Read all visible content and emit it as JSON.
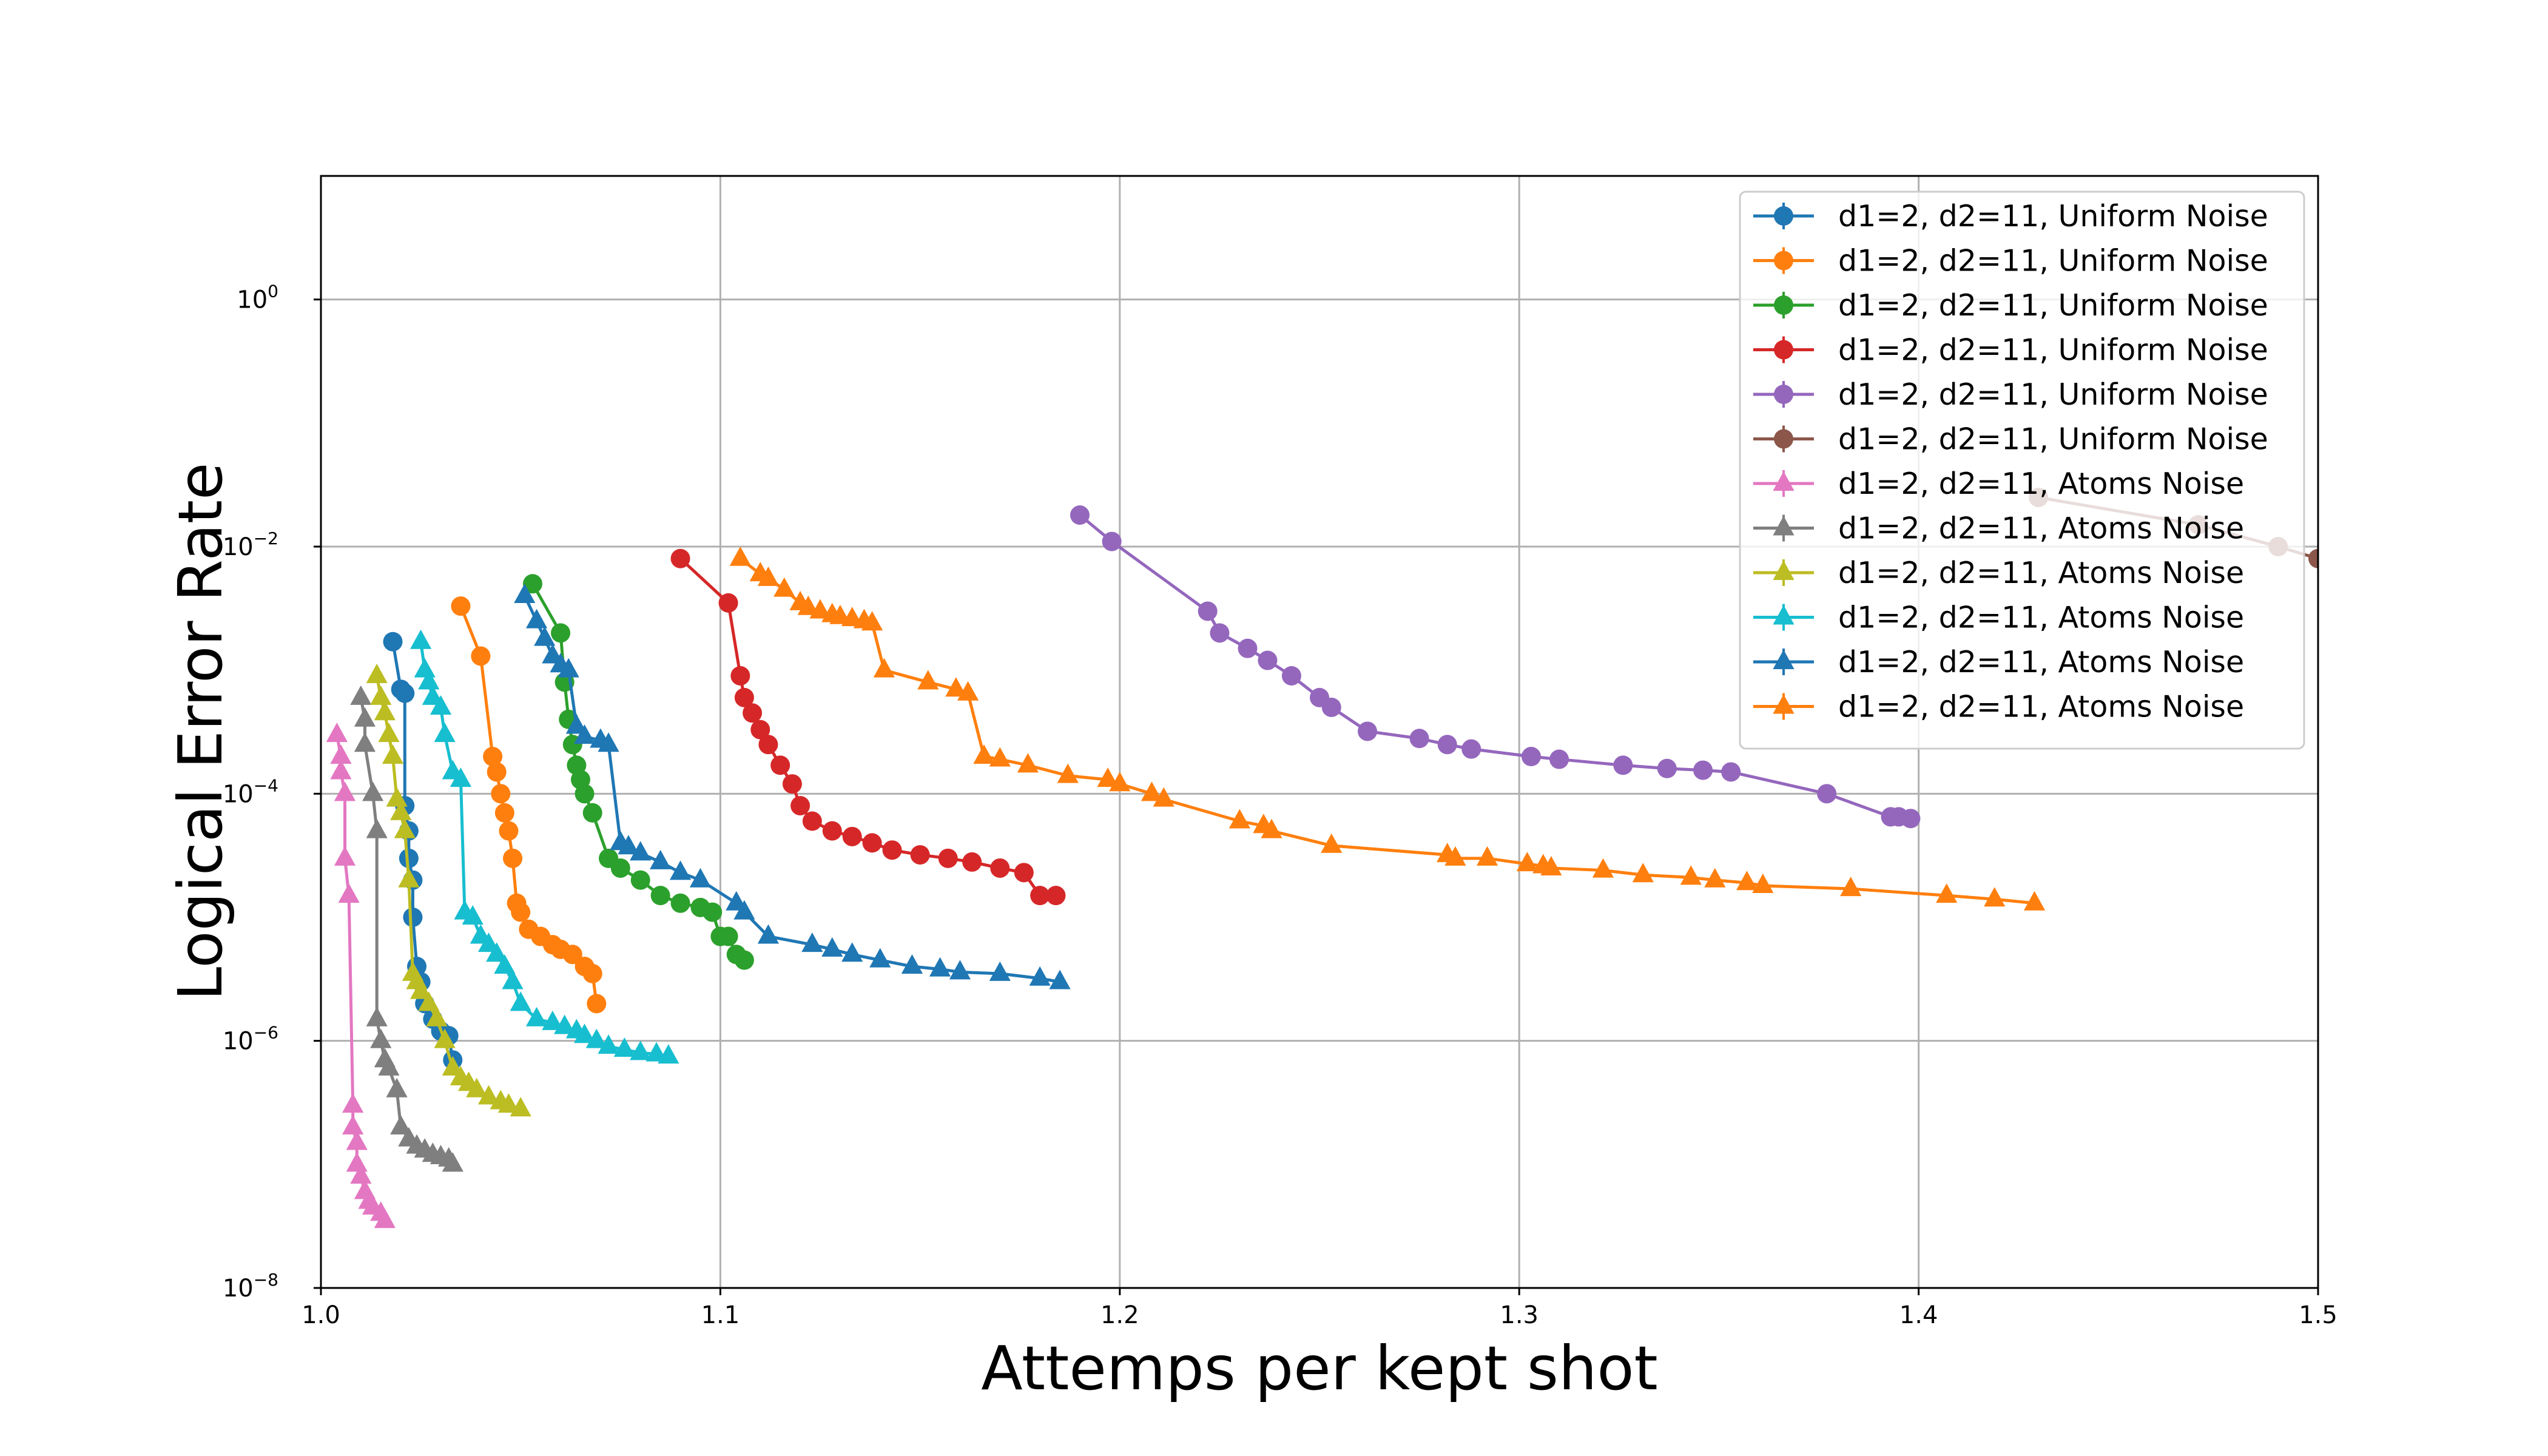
{
  "chart_data": {
    "type": "line",
    "title": "",
    "xlabel": "Attemps per kept shot",
    "ylabel": "Logical Error Rate",
    "xlim": [
      1.0,
      1.5
    ],
    "ylim_log10": [
      -8,
      1
    ],
    "y_scale": "log",
    "grid": true,
    "legend_position": "top-right",
    "x_ticks": [
      {
        "value": 1.0,
        "label": "1.0"
      },
      {
        "value": 1.1,
        "label": "1.1"
      },
      {
        "value": 1.2,
        "label": "1.2"
      },
      {
        "value": 1.3,
        "label": "1.3"
      },
      {
        "value": 1.4,
        "label": "1.4"
      },
      {
        "value": 1.5,
        "label": "1.5"
      }
    ],
    "y_ticks": [
      {
        "exp": 0,
        "base": "10",
        "sup": "0"
      },
      {
        "exp": -2,
        "base": "10",
        "sup": "−2"
      },
      {
        "exp": -4,
        "base": "10",
        "sup": "−4"
      },
      {
        "exp": -6,
        "base": "10",
        "sup": "−6"
      },
      {
        "exp": -8,
        "base": "10",
        "sup": "−8"
      }
    ],
    "series": [
      {
        "name": "d1=2, d2=11,  Uniform Noise",
        "color": "#1f77b4",
        "marker": "circle",
        "x": [
          1.018,
          1.02,
          1.021,
          1.021,
          1.022,
          1.022,
          1.023,
          1.023,
          1.024,
          1.025,
          1.026,
          1.028,
          1.03,
          1.032,
          1.033
        ],
        "y": [
          0.0017,
          0.0007,
          0.00065,
          8e-05,
          5e-05,
          3e-05,
          2e-05,
          1e-05,
          4e-06,
          3e-06,
          2e-06,
          1.5e-06,
          1.2e-06,
          1.1e-06,
          7e-07
        ]
      },
      {
        "name": "d1=2, d2=11,  Uniform Noise",
        "color": "#ff7f0e",
        "marker": "circle",
        "x": [
          1.035,
          1.04,
          1.043,
          1.044,
          1.045,
          1.046,
          1.047,
          1.048,
          1.049,
          1.05,
          1.052,
          1.055,
          1.058,
          1.06,
          1.063,
          1.066,
          1.068,
          1.069
        ],
        "y": [
          0.0033,
          0.0013,
          0.0002,
          0.00015,
          0.0001,
          7e-05,
          5e-05,
          3e-05,
          1.3e-05,
          1.1e-05,
          8e-06,
          7e-06,
          6e-06,
          5.5e-06,
          5e-06,
          4e-06,
          3.5e-06,
          2e-06
        ]
      },
      {
        "name": "d1=2, d2=11,  Uniform Noise",
        "color": "#2ca02c",
        "marker": "circle",
        "x": [
          1.053,
          1.06,
          1.061,
          1.062,
          1.063,
          1.064,
          1.065,
          1.066,
          1.068,
          1.072,
          1.075,
          1.08,
          1.085,
          1.09,
          1.095,
          1.098,
          1.1,
          1.102,
          1.104,
          1.106
        ],
        "y": [
          0.005,
          0.002,
          0.0008,
          0.0004,
          0.00025,
          0.00017,
          0.00013,
          0.0001,
          7e-05,
          3e-05,
          2.5e-05,
          2e-05,
          1.5e-05,
          1.3e-05,
          1.2e-05,
          1.1e-05,
          7e-06,
          7e-06,
          5e-06,
          4.5e-06
        ]
      },
      {
        "name": "d1=2, d2=11,  Uniform Noise",
        "color": "#d62728",
        "marker": "circle",
        "x": [
          1.09,
          1.102,
          1.105,
          1.106,
          1.108,
          1.11,
          1.112,
          1.115,
          1.118,
          1.12,
          1.123,
          1.128,
          1.133,
          1.138,
          1.143,
          1.15,
          1.157,
          1.163,
          1.17,
          1.176,
          1.18,
          1.184
        ],
        "y": [
          0.008,
          0.0035,
          0.0009,
          0.0006,
          0.00045,
          0.00033,
          0.00025,
          0.00017,
          0.00012,
          8e-05,
          6e-05,
          5e-05,
          4.5e-05,
          4e-05,
          3.5e-05,
          3.2e-05,
          3e-05,
          2.8e-05,
          2.5e-05,
          2.3e-05,
          1.5e-05,
          1.5e-05
        ]
      },
      {
        "name": "d1=2, d2=11,  Uniform Noise",
        "color": "#9467bd",
        "marker": "circle",
        "x": [
          1.19,
          1.198,
          1.222,
          1.225,
          1.232,
          1.237,
          1.243,
          1.25,
          1.253,
          1.262,
          1.275,
          1.282,
          1.288,
          1.303,
          1.31,
          1.326,
          1.337,
          1.346,
          1.353,
          1.377,
          1.393,
          1.395,
          1.398
        ],
        "y": [
          0.018,
          0.011,
          0.003,
          0.002,
          0.0015,
          0.0012,
          0.0009,
          0.0006,
          0.0005,
          0.00032,
          0.00028,
          0.00025,
          0.00023,
          0.0002,
          0.00019,
          0.00017,
          0.00016,
          0.000155,
          0.00015,
          0.0001,
          6.5e-05,
          6.5e-05,
          6.3e-05
        ]
      },
      {
        "name": "d1=2, d2=11,  Uniform Noise",
        "color": "#8c564b",
        "marker": "circle",
        "x": [
          1.43,
          1.47,
          1.49,
          1.5
        ],
        "y": [
          0.025,
          0.015,
          0.01,
          0.008
        ]
      },
      {
        "name": "d1=2, d2=11,  Atoms Noise",
        "color": "#e377c2",
        "marker": "triangle",
        "x": [
          1.004,
          1.005,
          1.005,
          1.006,
          1.006,
          1.007,
          1.008,
          1.008,
          1.009,
          1.009,
          1.01,
          1.011,
          1.012,
          1.013,
          1.015,
          1.016
        ],
        "y": [
          0.0003,
          0.0002,
          0.00015,
          0.0001,
          3e-05,
          1.5e-05,
          3e-07,
          2e-07,
          1.5e-07,
          1e-07,
          8e-08,
          6e-08,
          5e-08,
          4.5e-08,
          4e-08,
          3.5e-08
        ]
      },
      {
        "name": "d1=2, d2=11,  Atoms Noise",
        "color": "#7f7f7f",
        "marker": "triangle",
        "x": [
          1.01,
          1.011,
          1.011,
          1.013,
          1.014,
          1.014,
          1.015,
          1.016,
          1.017,
          1.019,
          1.02,
          1.022,
          1.024,
          1.026,
          1.028,
          1.03,
          1.032,
          1.033
        ],
        "y": [
          0.0006,
          0.0004,
          0.00025,
          0.0001,
          5e-05,
          1.5e-06,
          1e-06,
          7e-07,
          6e-07,
          4e-07,
          2e-07,
          1.6e-07,
          1.4e-07,
          1.3e-07,
          1.2e-07,
          1.15e-07,
          1.1e-07,
          1e-07
        ]
      },
      {
        "name": "d1=2, d2=11,  Atoms Noise",
        "color": "#bcbd22",
        "marker": "triangle",
        "x": [
          1.014,
          1.015,
          1.016,
          1.017,
          1.018,
          1.019,
          1.02,
          1.021,
          1.022,
          1.023,
          1.024,
          1.025,
          1.027,
          1.029,
          1.031,
          1.033,
          1.035,
          1.037,
          1.039,
          1.042,
          1.045,
          1.047,
          1.05
        ],
        "y": [
          0.0009,
          0.0006,
          0.00045,
          0.0003,
          0.0002,
          9e-05,
          7e-05,
          5e-05,
          2e-05,
          3.5e-06,
          3e-06,
          2.5e-06,
          2e-06,
          1.5e-06,
          1e-06,
          6e-07,
          5e-07,
          4.5e-07,
          4e-07,
          3.5e-07,
          3.2e-07,
          3e-07,
          2.8e-07
        ]
      },
      {
        "name": "d1=2, d2=11,  Atoms Noise",
        "color": "#17becf",
        "marker": "triangle",
        "x": [
          1.025,
          1.026,
          1.027,
          1.028,
          1.03,
          1.031,
          1.033,
          1.035,
          1.036,
          1.038,
          1.04,
          1.042,
          1.044,
          1.046,
          1.048,
          1.05,
          1.054,
          1.058,
          1.061,
          1.064,
          1.066,
          1.069,
          1.072,
          1.076,
          1.08,
          1.084,
          1.087
        ],
        "y": [
          0.0017,
          0.001,
          0.0008,
          0.0006,
          0.0005,
          0.0003,
          0.00015,
          0.00013,
          1.1e-05,
          1e-05,
          7e-06,
          6e-06,
          5e-06,
          4e-06,
          3e-06,
          2e-06,
          1.5e-06,
          1.4e-06,
          1.3e-06,
          1.2e-06,
          1.1e-06,
          1e-06,
          9e-07,
          8.5e-07,
          8e-07,
          7.8e-07,
          7.5e-07
        ]
      },
      {
        "name": "d1=2, d2=11,  Atoms Noise",
        "color": "#1f77b4",
        "marker": "triangle",
        "x": [
          1.051,
          1.054,
          1.056,
          1.058,
          1.06,
          1.062,
          1.064,
          1.066,
          1.07,
          1.072,
          1.075,
          1.077,
          1.08,
          1.085,
          1.09,
          1.095,
          1.104,
          1.106,
          1.112,
          1.123,
          1.128,
          1.133,
          1.14,
          1.148,
          1.155,
          1.16,
          1.17,
          1.18,
          1.185
        ],
        "y": [
          0.004,
          0.0025,
          0.0018,
          0.0013,
          0.0011,
          0.001,
          0.00035,
          0.00029,
          0.00027,
          0.00025,
          4e-05,
          3.7e-05,
          3.3e-05,
          2.8e-05,
          2.3e-05,
          2e-05,
          1.3e-05,
          1.1e-05,
          7e-06,
          6e-06,
          5.5e-06,
          5e-06,
          4.5e-06,
          4e-06,
          3.8e-06,
          3.6e-06,
          3.5e-06,
          3.2e-06,
          3e-06
        ]
      },
      {
        "name": "d1=2, d2=11,  Atoms Noise",
        "color": "#ff7f0e",
        "marker": "triangle",
        "x": [
          1.105,
          1.11,
          1.112,
          1.116,
          1.12,
          1.122,
          1.125,
          1.128,
          1.13,
          1.133,
          1.136,
          1.138,
          1.141,
          1.152,
          1.159,
          1.162,
          1.166,
          1.17,
          1.177,
          1.187,
          1.197,
          1.2,
          1.208,
          1.211,
          1.23,
          1.236,
          1.238,
          1.253,
          1.282,
          1.284,
          1.292,
          1.302,
          1.306,
          1.308,
          1.321,
          1.331,
          1.343,
          1.349,
          1.357,
          1.361,
          1.383,
          1.407,
          1.419,
          1.429
        ],
        "y": [
          0.008,
          0.006,
          0.0055,
          0.0045,
          0.0035,
          0.0032,
          0.003,
          0.0028,
          0.0027,
          0.0026,
          0.0025,
          0.0024,
          0.001,
          0.0008,
          0.0007,
          0.00065,
          0.0002,
          0.00019,
          0.00017,
          0.00014,
          0.00013,
          0.00012,
          0.0001,
          9e-05,
          6e-05,
          5.5e-05,
          5e-05,
          3.8e-05,
          3.2e-05,
          3e-05,
          3e-05,
          2.7e-05,
          2.6e-05,
          2.5e-05,
          2.4e-05,
          2.2e-05,
          2.1e-05,
          2e-05,
          1.9e-05,
          1.8e-05,
          1.7e-05,
          1.5e-05,
          1.4e-05,
          1.3e-05
        ]
      }
    ]
  }
}
